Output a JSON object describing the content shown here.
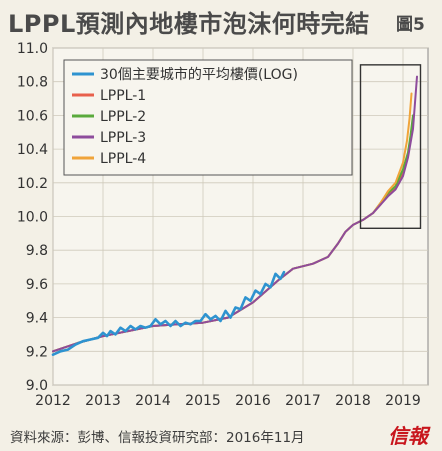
{
  "chart_data": {
    "type": "line",
    "title": "LPPL預測內地樓市泡沫何時完結",
    "figure_label": "圖5",
    "source": "資料來源：彭博、信報投資研究部：2016年11月",
    "brand": "信報",
    "xlim": [
      2012,
      2019.5
    ],
    "ylim": [
      9.0,
      11.0
    ],
    "x_ticks": [
      "2012",
      "2013",
      "2014",
      "2015",
      "2016",
      "2017",
      "2018",
      "2019"
    ],
    "y_ticks": [
      "9.0",
      "9.2",
      "9.4",
      "9.6",
      "9.8",
      "10.0",
      "10.2",
      "10.4",
      "10.6",
      "10.8",
      "11.0"
    ],
    "grid": true,
    "legend_position": "top-left",
    "highlight_box": {
      "x": [
        2018.15,
        2019.35
      ],
      "y": [
        9.93,
        10.9
      ]
    },
    "series": [
      {
        "name": "30個主要城市的平均樓價(LOG)",
        "color": "#2e93d0",
        "x": [
          2012.0,
          2012.15,
          2012.3,
          2012.45,
          2012.6,
          2012.75,
          2012.9,
          2013.0,
          2013.08,
          2013.15,
          2013.25,
          2013.35,
          2013.45,
          2013.55,
          2013.65,
          2013.75,
          2013.85,
          2013.95,
          2014.05,
          2014.15,
          2014.25,
          2014.35,
          2014.45,
          2014.55,
          2014.65,
          2014.75,
          2014.85,
          2014.95,
          2015.05,
          2015.15,
          2015.25,
          2015.35,
          2015.45,
          2015.55,
          2015.65,
          2015.75,
          2015.85,
          2015.95,
          2016.05,
          2016.15,
          2016.25,
          2016.35,
          2016.45,
          2016.55,
          2016.62
        ],
        "values": [
          9.18,
          9.2,
          9.21,
          9.24,
          9.26,
          9.27,
          9.28,
          9.31,
          9.29,
          9.32,
          9.3,
          9.34,
          9.32,
          9.35,
          9.33,
          9.35,
          9.34,
          9.35,
          9.39,
          9.36,
          9.38,
          9.35,
          9.38,
          9.35,
          9.37,
          9.36,
          9.38,
          9.38,
          9.42,
          9.39,
          9.41,
          9.38,
          9.44,
          9.4,
          9.46,
          9.45,
          9.52,
          9.5,
          9.56,
          9.54,
          9.6,
          9.58,
          9.66,
          9.63,
          9.67
        ]
      },
      {
        "name": "LPPL-1",
        "color": "#e8604c",
        "x": [
          2012.0,
          2012.5,
          2013.0,
          2013.5,
          2014.0,
          2014.5,
          2015.0,
          2015.5,
          2016.0,
          2016.5,
          2016.8,
          2017.2,
          2017.5,
          2017.7,
          2017.85,
          2018.0,
          2018.2,
          2018.4,
          2018.55,
          2018.7,
          2018.85,
          2019.0,
          2019.1,
          2019.15,
          2019.2
        ],
        "values": [
          9.2,
          9.25,
          9.29,
          9.32,
          9.35,
          9.36,
          9.37,
          9.4,
          9.49,
          9.62,
          9.69,
          9.72,
          9.76,
          9.84,
          9.91,
          9.95,
          9.98,
          10.02,
          10.07,
          10.13,
          10.17,
          10.26,
          10.36,
          10.46,
          10.58
        ]
      },
      {
        "name": "LPPL-2",
        "color": "#5aaa3c",
        "x": [
          2012.0,
          2012.5,
          2013.0,
          2013.5,
          2014.0,
          2014.5,
          2015.0,
          2015.5,
          2016.0,
          2016.5,
          2016.8,
          2017.2,
          2017.5,
          2017.7,
          2017.85,
          2018.0,
          2018.2,
          2018.4,
          2018.55,
          2018.7,
          2018.85,
          2019.0,
          2019.1,
          2019.15,
          2019.2
        ],
        "values": [
          9.2,
          9.25,
          9.29,
          9.32,
          9.35,
          9.36,
          9.37,
          9.4,
          9.49,
          9.62,
          9.69,
          9.72,
          9.76,
          9.84,
          9.91,
          9.95,
          9.98,
          10.02,
          10.08,
          10.14,
          10.18,
          10.28,
          10.38,
          10.48,
          10.6
        ]
      },
      {
        "name": "LPPL-3",
        "color": "#8e4c9c",
        "x": [
          2012.0,
          2012.5,
          2013.0,
          2013.5,
          2014.0,
          2014.5,
          2015.0,
          2015.5,
          2016.0,
          2016.5,
          2016.8,
          2017.2,
          2017.5,
          2017.7,
          2017.85,
          2018.0,
          2018.2,
          2018.4,
          2018.55,
          2018.7,
          2018.85,
          2019.0,
          2019.1,
          2019.2,
          2019.28
        ],
        "values": [
          9.2,
          9.25,
          9.29,
          9.32,
          9.35,
          9.36,
          9.37,
          9.4,
          9.49,
          9.62,
          9.69,
          9.72,
          9.76,
          9.84,
          9.91,
          9.95,
          9.98,
          10.02,
          10.07,
          10.12,
          10.16,
          10.24,
          10.35,
          10.52,
          10.83
        ]
      },
      {
        "name": "LPPL-4",
        "color": "#f0a43a",
        "x": [
          2012.0,
          2012.5,
          2013.0,
          2013.5,
          2014.0,
          2014.5,
          2015.0,
          2015.5,
          2016.0,
          2016.5,
          2016.8,
          2017.2,
          2017.5,
          2017.7,
          2017.85,
          2018.0,
          2018.2,
          2018.4,
          2018.55,
          2018.7,
          2018.85,
          2019.0,
          2019.08,
          2019.13,
          2019.17
        ],
        "values": [
          9.2,
          9.25,
          9.29,
          9.32,
          9.35,
          9.36,
          9.37,
          9.4,
          9.49,
          9.62,
          9.69,
          9.72,
          9.76,
          9.84,
          9.91,
          9.95,
          9.98,
          10.02,
          10.08,
          10.15,
          10.2,
          10.32,
          10.45,
          10.58,
          10.73
        ]
      }
    ]
  }
}
